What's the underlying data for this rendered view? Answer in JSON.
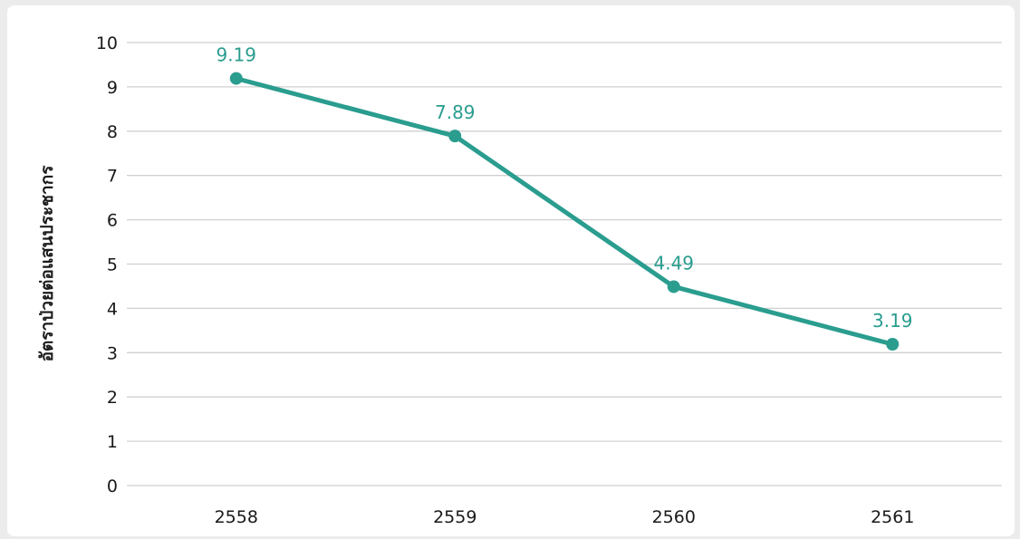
{
  "chart_data": {
    "type": "line",
    "title": "",
    "xlabel": "",
    "ylabel": "อัตราป่วยต่อแสนประชากร",
    "categories": [
      "2558",
      "2559",
      "2560",
      "2561"
    ],
    "series": [
      {
        "values": [
          9.19,
          7.89,
          4.49,
          3.19
        ]
      }
    ],
    "data_labels": [
      "9.19",
      "7.89",
      "4.49",
      "3.19"
    ],
    "ylim": [
      0,
      10
    ],
    "yticks": [
      0,
      1,
      2,
      3,
      4,
      5,
      6,
      7,
      8,
      9,
      10
    ],
    "grid": true,
    "legend": "none",
    "colors": {
      "series": "#2a9d8f",
      "grid": "#d0d0d0",
      "background": "#ffffff"
    }
  }
}
